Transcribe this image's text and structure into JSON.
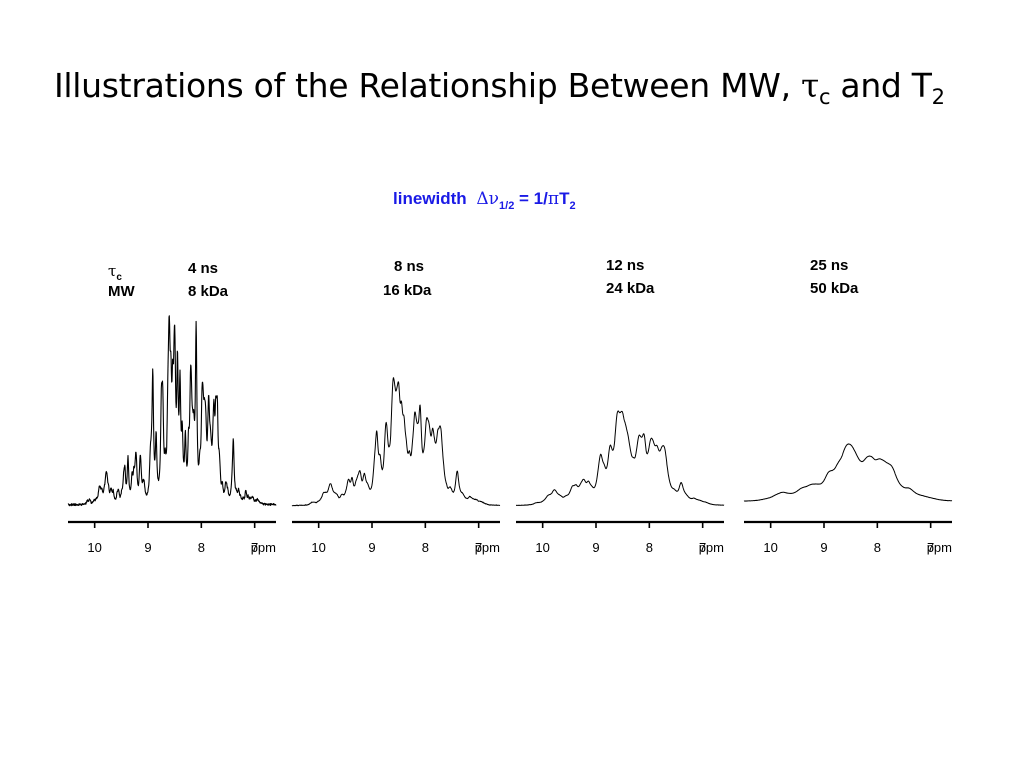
{
  "slide": {
    "title_main": "Illustrations of the Relationship Between MW, ",
    "title_tau": "τ",
    "title_tau_sub": "c",
    "title_mid": " and T",
    "title_t_sub": "2"
  },
  "colors": {
    "accent": "#1a1ae6",
    "trace": "#000000",
    "text": "#000000"
  },
  "chart_data": {
    "type": "line",
    "title": {
      "prefix": "linewidth ",
      "delta": "Δ",
      "nu": "ν",
      "nu_sub": "1/2",
      "eq": " = 1/",
      "pi": "π",
      "T": "T",
      "T_sub": "2"
    },
    "row_labels": {
      "tau": "τ",
      "tau_sub": "c",
      "mw": "MW"
    },
    "xaxis": {
      "reversed": true,
      "unit": "ppm",
      "ticks": [
        "10",
        "9",
        "8",
        "7"
      ],
      "xlim": [
        10.5,
        6.6
      ]
    },
    "panels": [
      {
        "tau_c": "4 ns",
        "mw": "8 kDa",
        "tau_c_ns": 4,
        "mw_kda": 8
      },
      {
        "tau_c": "8 ns",
        "mw": "16 kDa",
        "tau_c_ns": 8,
        "mw_kda": 16
      },
      {
        "tau_c": "12 ns",
        "mw": "24 kDa",
        "tau_c_ns": 12,
        "mw_kda": 24
      },
      {
        "tau_c": "25 ns",
        "mw": "50 kDa",
        "tau_c_ns": 25,
        "mw_kda": 50
      }
    ]
  }
}
